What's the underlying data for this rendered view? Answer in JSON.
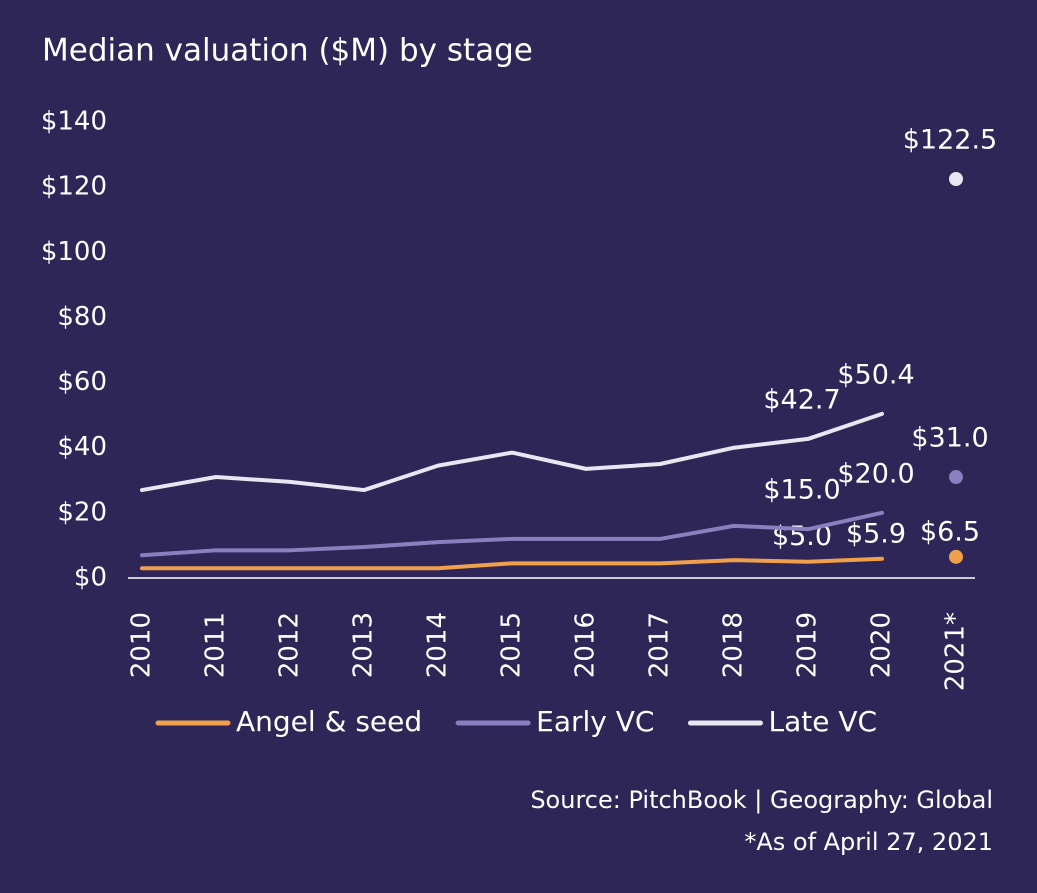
{
  "chart_data": {
    "type": "line",
    "title": "Median valuation ($M) by stage",
    "categories": [
      "2010",
      "2011",
      "2012",
      "2013",
      "2014",
      "2015",
      "2016",
      "2017",
      "2018",
      "2019",
      "2020",
      "2021*"
    ],
    "series": [
      {
        "name": "Angel & seed",
        "color": "#f0a04b",
        "values": [
          3,
          3,
          3,
          3,
          3,
          4.5,
          4.5,
          4.5,
          5.5,
          5.0,
          5.9,
          6.5
        ],
        "value_labels": [
          null,
          null,
          null,
          null,
          null,
          null,
          null,
          null,
          null,
          "$5.0",
          "$5.9",
          "$6.5"
        ]
      },
      {
        "name": "Early VC",
        "color": "#8a7fbf",
        "values": [
          7,
          8.5,
          8.5,
          9.5,
          11,
          12,
          12,
          12,
          16,
          15.0,
          20.0,
          31.0
        ],
        "value_labels": [
          null,
          null,
          null,
          null,
          null,
          null,
          null,
          null,
          null,
          "$15.0",
          "$20.0",
          "$31.0"
        ]
      },
      {
        "name": "Late VC",
        "color": "#e8e6f0",
        "values": [
          27,
          31,
          29.5,
          27,
          34.5,
          38.5,
          33.5,
          35,
          40,
          42.7,
          50.4,
          122.5
        ],
        "value_labels": [
          null,
          null,
          null,
          null,
          null,
          null,
          null,
          null,
          null,
          "$42.7",
          "$50.4",
          "$122.5"
        ]
      }
    ],
    "isolated_last_point": true,
    "ylim": [
      0,
      140
    ],
    "yticks": [
      {
        "value": 0,
        "label": "$0"
      },
      {
        "value": 20,
        "label": "$20"
      },
      {
        "value": 40,
        "label": "$40"
      },
      {
        "value": 60,
        "label": "$60"
      },
      {
        "value": 80,
        "label": "$80"
      },
      {
        "value": 100,
        "label": "$100"
      },
      {
        "value": 120,
        "label": "$120"
      },
      {
        "value": 140,
        "label": "$140"
      }
    ],
    "grid": false,
    "legend": "bottom",
    "source": "Source: PitchBook | Geography: Global",
    "note": "*As of April 27, 2021"
  }
}
